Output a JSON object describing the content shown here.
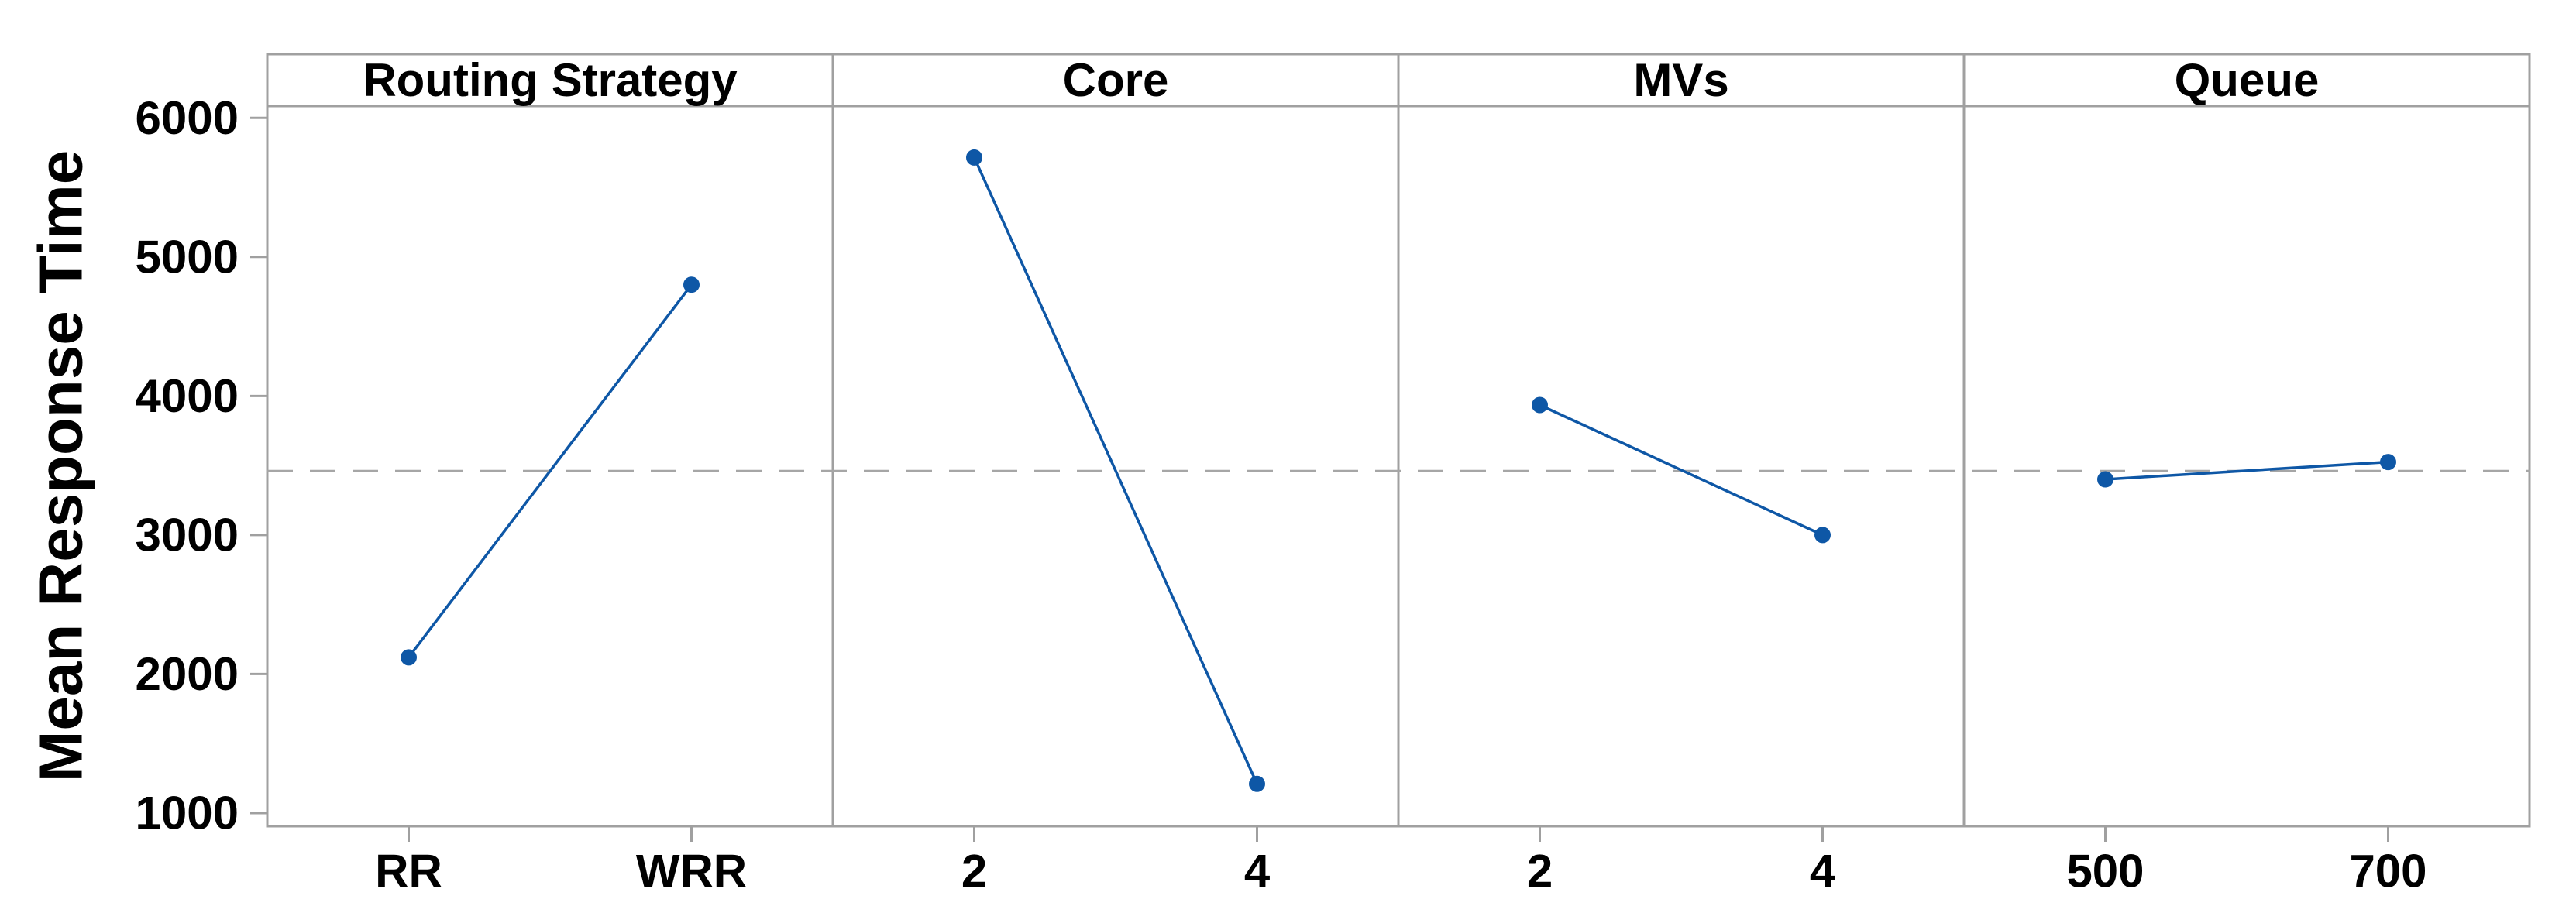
{
  "chart_data": {
    "type": "line",
    "subtype": "main-effects-plot",
    "title": "",
    "ylabel": "Mean Response Time",
    "ylim": [
      905,
      6085
    ],
    "yticks": [
      1000,
      2000,
      3000,
      4000,
      5000,
      6000
    ],
    "grand_mean": 3460,
    "grid": false,
    "legend": null,
    "panels": [
      {
        "title": "Routing Strategy",
        "categories": [
          "RR",
          "WRR"
        ],
        "values": [
          2120,
          4800
        ]
      },
      {
        "title": "Core",
        "categories": [
          "2",
          "4"
        ],
        "values": [
          5715,
          1210
        ]
      },
      {
        "title": "MVs",
        "categories": [
          "2",
          "4"
        ],
        "values": [
          3935,
          3000
        ]
      },
      {
        "title": "Queue",
        "categories": [
          "500",
          "700"
        ],
        "values": [
          3400,
          3525
        ]
      }
    ],
    "colors": {
      "series": "#0e57a6",
      "border": "#a0a0a0",
      "tick": "#a0a0a0",
      "mean_line": "#a6a6a6",
      "text": "#000000",
      "background": "#ffffff"
    }
  }
}
